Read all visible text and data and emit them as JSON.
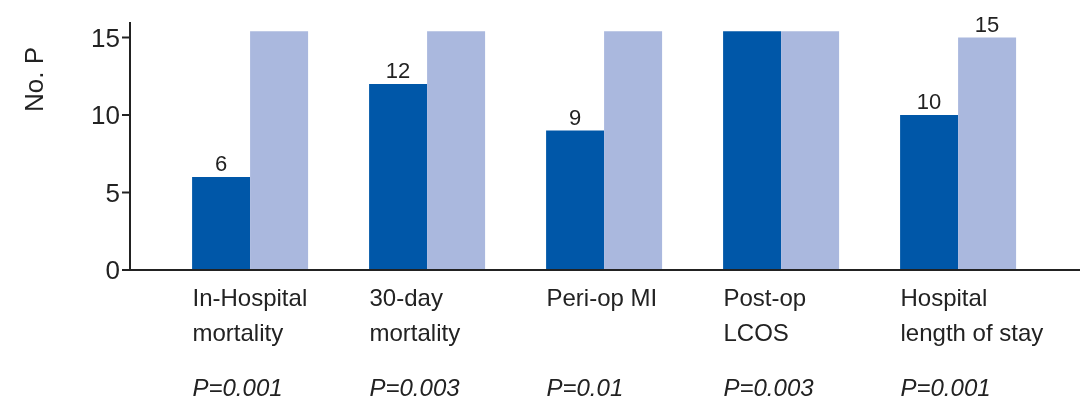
{
  "chart_data": {
    "type": "bar",
    "ylabel": "No. P",
    "categories": [
      "In-Hospital\nmortality",
      "30-day\nmortality",
      "Peri-op MI",
      "Post-op\nLCOS",
      "Hospital\nlength of stay"
    ],
    "series": [
      {
        "color": "#0057a8",
        "values": [
          6,
          12,
          9,
          15.4,
          10
        ],
        "value_labels": [
          "6",
          "12",
          "9",
          null,
          "10"
        ]
      },
      {
        "color": "#aab8de",
        "values": [
          15.4,
          15.4,
          15.4,
          15.4,
          15
        ],
        "value_labels": [
          null,
          null,
          null,
          null,
          "15"
        ]
      }
    ],
    "ylim": [
      0,
      16
    ],
    "yticks": [
      0,
      5,
      10,
      15
    ],
    "grid": false,
    "legend": false,
    "annotations": [
      "P=0.001",
      "P=0.003",
      "P=0.01",
      "P=0.003",
      "P=0.001"
    ]
  }
}
